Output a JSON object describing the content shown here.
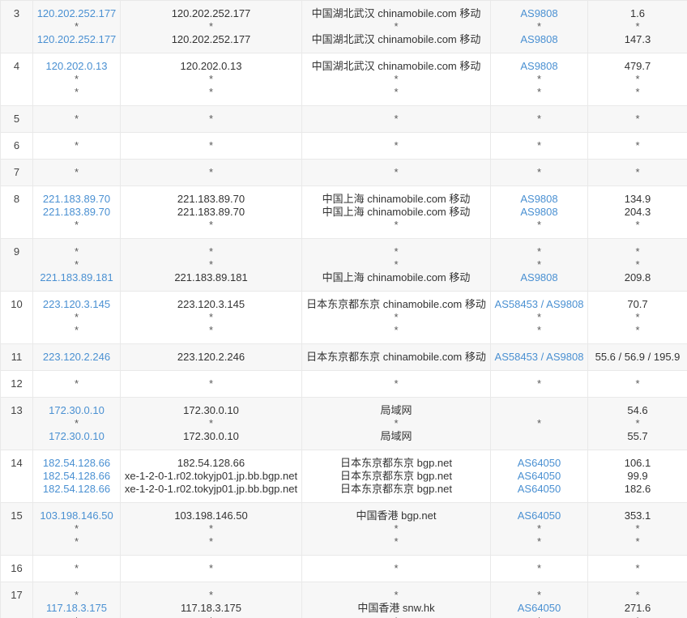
{
  "colors": {
    "link": "#4a90d2",
    "text": "#333333",
    "star": "#5a5a5a",
    "stripe": "#f7f7f7",
    "border": "#e9e9e9",
    "outer_border": "#d9d9d9"
  },
  "table": {
    "column_keys": [
      "ip",
      "host",
      "location",
      "asn",
      "latency"
    ],
    "rows": [
      {
        "hop": "3",
        "striped": true,
        "ip": [
          [
            {
              "t": "120.202.252.177",
              "link": true
            }
          ],
          [
            "*"
          ],
          [
            {
              "t": "120.202.252.177",
              "link": true
            }
          ]
        ],
        "host": [
          [
            "120.202.252.177"
          ],
          [
            "*"
          ],
          [
            "120.202.252.177"
          ]
        ],
        "location": [
          [
            "中国湖北武汉 chinamobile.com 移动"
          ],
          [
            "*"
          ],
          [
            "中国湖北武汉 chinamobile.com 移动"
          ]
        ],
        "asn": [
          [
            {
              "t": "AS9808",
              "link": true
            }
          ],
          [
            "*"
          ],
          [
            {
              "t": "AS9808",
              "link": true
            }
          ]
        ],
        "latency": [
          [
            "1.6"
          ],
          [
            "*"
          ],
          [
            "147.3"
          ]
        ]
      },
      {
        "hop": "4",
        "striped": false,
        "ip": [
          [
            {
              "t": "120.202.0.13",
              "link": true
            }
          ],
          [
            "*"
          ],
          [
            "*"
          ]
        ],
        "host": [
          [
            "120.202.0.13"
          ],
          [
            "*"
          ],
          [
            "*"
          ]
        ],
        "location": [
          [
            "中国湖北武汉 chinamobile.com 移动"
          ],
          [
            "*"
          ],
          [
            "*"
          ]
        ],
        "asn": [
          [
            {
              "t": "AS9808",
              "link": true
            }
          ],
          [
            "*"
          ],
          [
            "*"
          ]
        ],
        "latency": [
          [
            "479.7"
          ],
          [
            "*"
          ],
          [
            "*"
          ]
        ]
      },
      {
        "hop": "5",
        "striped": true,
        "ip": [
          [
            "*"
          ]
        ],
        "host": [
          [
            "*"
          ]
        ],
        "location": [
          [
            "*"
          ]
        ],
        "asn": [
          [
            "*"
          ]
        ],
        "latency": [
          [
            "*"
          ]
        ]
      },
      {
        "hop": "6",
        "striped": false,
        "ip": [
          [
            "*"
          ]
        ],
        "host": [
          [
            "*"
          ]
        ],
        "location": [
          [
            "*"
          ]
        ],
        "asn": [
          [
            "*"
          ]
        ],
        "latency": [
          [
            "*"
          ]
        ]
      },
      {
        "hop": "7",
        "striped": true,
        "ip": [
          [
            "*"
          ]
        ],
        "host": [
          [
            "*"
          ]
        ],
        "location": [
          [
            "*"
          ]
        ],
        "asn": [
          [
            "*"
          ]
        ],
        "latency": [
          [
            "*"
          ]
        ]
      },
      {
        "hop": "8",
        "striped": false,
        "ip": [
          [
            {
              "t": "221.183.89.70",
              "link": true
            }
          ],
          [
            {
              "t": "221.183.89.70",
              "link": true
            }
          ],
          [
            "*"
          ]
        ],
        "host": [
          [
            "221.183.89.70"
          ],
          [
            "221.183.89.70"
          ],
          [
            "*"
          ]
        ],
        "location": [
          [
            "中国上海 chinamobile.com 移动"
          ],
          [
            "中国上海 chinamobile.com 移动"
          ],
          [
            "*"
          ]
        ],
        "asn": [
          [
            {
              "t": "AS9808",
              "link": true
            }
          ],
          [
            {
              "t": "AS9808",
              "link": true
            }
          ],
          [
            "*"
          ]
        ],
        "latency": [
          [
            "134.9"
          ],
          [
            "204.3"
          ],
          [
            "*"
          ]
        ]
      },
      {
        "hop": "9",
        "striped": true,
        "ip": [
          [
            "*"
          ],
          [
            "*"
          ],
          [
            {
              "t": "221.183.89.181",
              "link": true
            }
          ]
        ],
        "host": [
          [
            "*"
          ],
          [
            "*"
          ],
          [
            "221.183.89.181"
          ]
        ],
        "location": [
          [
            "*"
          ],
          [
            "*"
          ],
          [
            "中国上海 chinamobile.com 移动"
          ]
        ],
        "asn": [
          [
            "*"
          ],
          [
            "*"
          ],
          [
            {
              "t": "AS9808",
              "link": true
            }
          ]
        ],
        "latency": [
          [
            "*"
          ],
          [
            "*"
          ],
          [
            "209.8"
          ]
        ]
      },
      {
        "hop": "10",
        "striped": false,
        "ip": [
          [
            {
              "t": "223.120.3.145",
              "link": true
            }
          ],
          [
            "*"
          ],
          [
            "*"
          ]
        ],
        "host": [
          [
            "223.120.3.145"
          ],
          [
            "*"
          ],
          [
            "*"
          ]
        ],
        "location": [
          [
            "日本东京都东京 chinamobile.com 移动"
          ],
          [
            "*"
          ],
          [
            "*"
          ]
        ],
        "asn": [
          [
            {
              "t": "AS58453",
              "link": true
            },
            {
              "t": " / ",
              "sep": true
            },
            {
              "t": "AS9808",
              "link": true
            }
          ],
          [
            "*"
          ],
          [
            "*"
          ]
        ],
        "latency": [
          [
            "70.7"
          ],
          [
            "*"
          ],
          [
            "*"
          ]
        ]
      },
      {
        "hop": "11",
        "striped": true,
        "ip": [
          [
            {
              "t": "223.120.2.246",
              "link": true
            }
          ]
        ],
        "host": [
          [
            "223.120.2.246"
          ]
        ],
        "location": [
          [
            "日本东京都东京 chinamobile.com 移动"
          ]
        ],
        "asn": [
          [
            {
              "t": "AS58453",
              "link": true
            },
            {
              "t": " / ",
              "sep": true
            },
            {
              "t": "AS9808",
              "link": true
            }
          ]
        ],
        "latency": [
          [
            "55.6 / 56.9 / 195.9"
          ]
        ]
      },
      {
        "hop": "12",
        "striped": false,
        "ip": [
          [
            "*"
          ]
        ],
        "host": [
          [
            "*"
          ]
        ],
        "location": [
          [
            "*"
          ]
        ],
        "asn": [
          [
            "*"
          ]
        ],
        "latency": [
          [
            "*"
          ]
        ]
      },
      {
        "hop": "13",
        "striped": true,
        "ip": [
          [
            {
              "t": "172.30.0.10",
              "link": true
            }
          ],
          [
            "*"
          ],
          [
            {
              "t": "172.30.0.10",
              "link": true
            }
          ]
        ],
        "host": [
          [
            "172.30.0.10"
          ],
          [
            "*"
          ],
          [
            "172.30.0.10"
          ]
        ],
        "location": [
          [
            "局域网"
          ],
          [
            "*"
          ],
          [
            "局域网"
          ]
        ],
        "asn": [
          [
            "*"
          ]
        ],
        "latency": [
          [
            "54.6"
          ],
          [
            "*"
          ],
          [
            "55.7"
          ]
        ]
      },
      {
        "hop": "14",
        "striped": false,
        "ip": [
          [
            {
              "t": "182.54.128.66",
              "link": true
            }
          ],
          [
            {
              "t": "182.54.128.66",
              "link": true
            }
          ],
          [
            {
              "t": "182.54.128.66",
              "link": true
            }
          ]
        ],
        "host": [
          [
            "182.54.128.66"
          ],
          [
            "xe-1-2-0-1.r02.tokyjp01.jp.bb.bgp.net"
          ],
          [
            "xe-1-2-0-1.r02.tokyjp01.jp.bb.bgp.net"
          ]
        ],
        "location": [
          [
            "日本东京都东京 bgp.net"
          ],
          [
            "日本东京都东京 bgp.net"
          ],
          [
            "日本东京都东京 bgp.net"
          ]
        ],
        "asn": [
          [
            {
              "t": "AS64050",
              "link": true
            }
          ],
          [
            {
              "t": "AS64050",
              "link": true
            }
          ],
          [
            {
              "t": "AS64050",
              "link": true
            }
          ]
        ],
        "latency": [
          [
            "106.1"
          ],
          [
            "99.9"
          ],
          [
            "182.6"
          ]
        ]
      },
      {
        "hop": "15",
        "striped": true,
        "ip": [
          [
            {
              "t": "103.198.146.50",
              "link": true
            }
          ],
          [
            "*"
          ],
          [
            "*"
          ]
        ],
        "host": [
          [
            "103.198.146.50"
          ],
          [
            "*"
          ],
          [
            "*"
          ]
        ],
        "location": [
          [
            "中国香港 bgp.net"
          ],
          [
            "*"
          ],
          [
            "*"
          ]
        ],
        "asn": [
          [
            {
              "t": "AS64050",
              "link": true
            }
          ],
          [
            "*"
          ],
          [
            "*"
          ]
        ],
        "latency": [
          [
            "353.1"
          ],
          [
            "*"
          ],
          [
            "*"
          ]
        ]
      },
      {
        "hop": "16",
        "striped": false,
        "ip": [
          [
            "*"
          ]
        ],
        "host": [
          [
            "*"
          ]
        ],
        "location": [
          [
            "*"
          ]
        ],
        "asn": [
          [
            "*"
          ]
        ],
        "latency": [
          [
            "*"
          ]
        ]
      },
      {
        "hop": "17",
        "striped": true,
        "ip": [
          [
            "*"
          ],
          [
            {
              "t": "117.18.3.175",
              "link": true
            }
          ],
          [
            "*"
          ]
        ],
        "host": [
          [
            "*"
          ],
          [
            "117.18.3.175"
          ],
          [
            "*"
          ]
        ],
        "location": [
          [
            "*"
          ],
          [
            "中国香港 snw.hk"
          ],
          [
            "*"
          ]
        ],
        "asn": [
          [
            "*"
          ],
          [
            {
              "t": "AS64050",
              "link": true
            }
          ],
          [
            "*"
          ]
        ],
        "latency": [
          [
            "*"
          ],
          [
            "271.6"
          ],
          [
            "*"
          ]
        ]
      }
    ]
  }
}
